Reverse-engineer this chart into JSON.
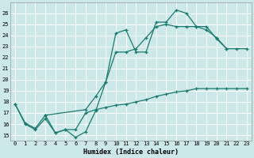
{
  "xlabel": "Humidex (Indice chaleur)",
  "bg_color": "#cce8e8",
  "grid_color": "#ffffff",
  "line_color": "#1a7a6e",
  "xlim": [
    -0.5,
    23.5
  ],
  "ylim": [
    14.5,
    27.0
  ],
  "xticks": [
    0,
    1,
    2,
    3,
    4,
    5,
    6,
    7,
    8,
    9,
    10,
    11,
    12,
    13,
    14,
    15,
    16,
    17,
    18,
    19,
    20,
    21,
    22,
    23
  ],
  "yticks": [
    15,
    16,
    17,
    18,
    19,
    20,
    21,
    22,
    23,
    24,
    25,
    26
  ],
  "curve1_x": [
    0,
    1,
    2,
    3,
    4,
    5,
    6,
    7,
    8,
    9,
    10,
    11,
    12,
    13,
    14,
    15,
    16,
    17,
    18,
    19,
    20,
    21
  ],
  "curve1_y": [
    17.8,
    16.0,
    15.5,
    16.5,
    15.2,
    15.5,
    14.8,
    15.3,
    17.2,
    19.8,
    24.2,
    24.5,
    22.5,
    22.5,
    25.2,
    25.2,
    26.3,
    26.0,
    24.8,
    24.8,
    23.7,
    22.8
  ],
  "curve2_x": [
    3,
    7,
    8,
    9,
    10,
    11,
    12,
    13,
    14,
    15,
    16,
    17,
    18,
    19,
    20,
    21,
    22,
    23
  ],
  "curve2_y": [
    16.8,
    17.3,
    18.5,
    19.8,
    22.5,
    22.5,
    22.8,
    23.8,
    24.8,
    25.0,
    24.8,
    24.8,
    24.8,
    24.5,
    23.8,
    22.8,
    22.8,
    22.8
  ],
  "curve3_x": [
    0,
    1,
    2,
    3,
    4,
    5,
    6,
    7,
    8,
    9,
    10,
    11,
    12,
    13,
    14,
    15,
    16,
    17,
    18,
    19,
    20,
    21,
    22,
    23
  ],
  "curve3_y": [
    17.8,
    16.1,
    15.6,
    16.8,
    15.2,
    15.5,
    15.5,
    17.0,
    17.3,
    17.5,
    17.7,
    17.8,
    18.0,
    18.2,
    18.5,
    18.7,
    18.9,
    19.0,
    19.2,
    19.2,
    19.2,
    19.2,
    19.2,
    19.2
  ]
}
